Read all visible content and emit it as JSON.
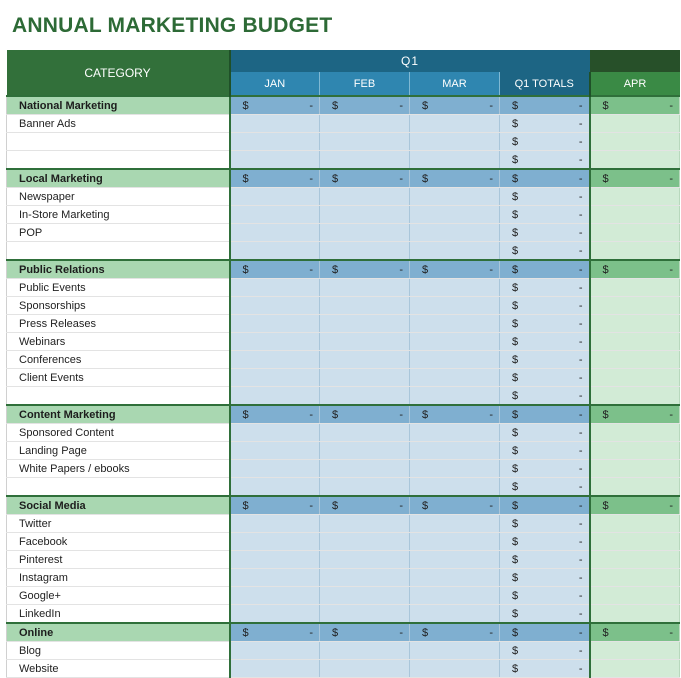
{
  "title": "ANNUAL MARKETING BUDGET",
  "header": {
    "category": "CATEGORY",
    "quarter": "Q1",
    "months": [
      "JAN",
      "FEB",
      "MAR"
    ],
    "quarter_total": "Q1 TOTALS",
    "next_month": "APR"
  },
  "currency": {
    "symbol": "$",
    "empty": "-"
  },
  "rows": [
    {
      "label": "National Marketing",
      "type": "section"
    },
    {
      "label": "Banner Ads",
      "type": "item"
    },
    {
      "label": "",
      "type": "item"
    },
    {
      "label": "",
      "type": "item"
    },
    {
      "label": "Local Marketing",
      "type": "section"
    },
    {
      "label": "Newspaper",
      "type": "item"
    },
    {
      "label": "In-Store Marketing",
      "type": "item"
    },
    {
      "label": "POP",
      "type": "item"
    },
    {
      "label": "",
      "type": "item"
    },
    {
      "label": "Public Relations",
      "type": "section"
    },
    {
      "label": "Public Events",
      "type": "item"
    },
    {
      "label": "Sponsorships",
      "type": "item"
    },
    {
      "label": "Press Releases",
      "type": "item"
    },
    {
      "label": "Webinars",
      "type": "item"
    },
    {
      "label": "Conferences",
      "type": "item"
    },
    {
      "label": "Client Events",
      "type": "item"
    },
    {
      "label": "",
      "type": "item"
    },
    {
      "label": "Content Marketing",
      "type": "section"
    },
    {
      "label": "Sponsored Content",
      "type": "item"
    },
    {
      "label": "Landing Page",
      "type": "item"
    },
    {
      "label": "White Papers / ebooks",
      "type": "item"
    },
    {
      "label": "",
      "type": "item"
    },
    {
      "label": "Social Media",
      "type": "section"
    },
    {
      "label": "Twitter",
      "type": "item"
    },
    {
      "label": "Facebook",
      "type": "item"
    },
    {
      "label": "Pinterest",
      "type": "item"
    },
    {
      "label": "Instagram",
      "type": "item"
    },
    {
      "label": "Google+",
      "type": "item"
    },
    {
      "label": "LinkedIn",
      "type": "item"
    },
    {
      "label": "Online",
      "type": "section"
    },
    {
      "label": "Blog",
      "type": "item"
    },
    {
      "label": "Website",
      "type": "item"
    }
  ]
}
